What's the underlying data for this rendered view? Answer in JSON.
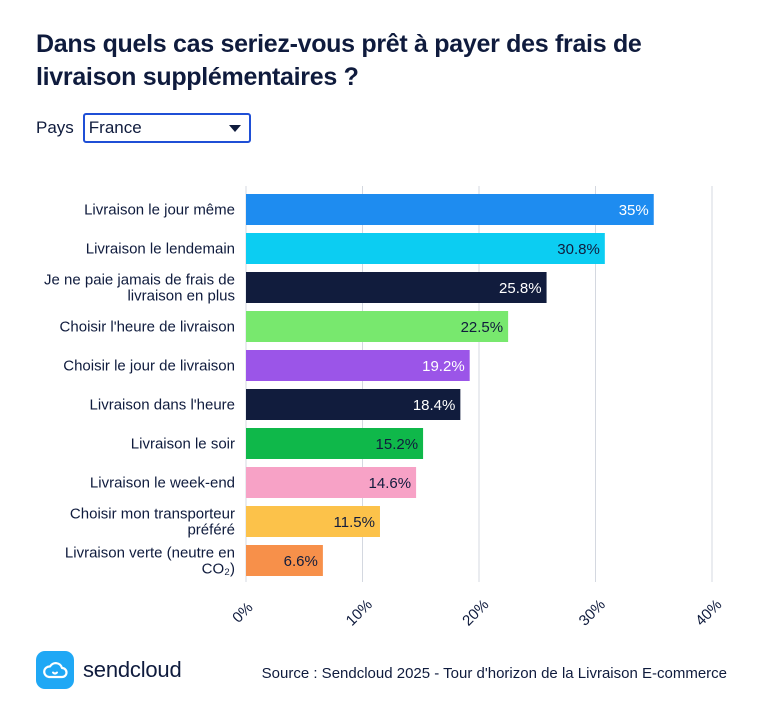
{
  "title": "Dans quels cas seriez-vous prêt à payer des frais de livraison supplémentaires ?",
  "filter": {
    "label": "Pays",
    "selected": "France"
  },
  "chart_data": {
    "type": "bar",
    "orientation": "horizontal",
    "categories": [
      [
        "Livraison le jour même"
      ],
      [
        "Livraison le lendemain"
      ],
      [
        "Je ne paie jamais de frais de",
        "livraison en plus"
      ],
      [
        "Choisir l'heure de livraison"
      ],
      [
        "Choisir le jour de livraison"
      ],
      [
        "Livraison dans l'heure"
      ],
      [
        "Livraison le soir"
      ],
      [
        "Livraison le week-end"
      ],
      [
        "Choisir mon transporteur",
        "préféré"
      ],
      [
        "Livraison verte (neutre en",
        "CO₂)"
      ]
    ],
    "values": [
      35,
      30.8,
      25.8,
      22.5,
      19.2,
      18.4,
      15.2,
      14.6,
      11.5,
      6.6
    ],
    "value_labels": [
      "35%",
      "30.8%",
      "25.8%",
      "22.5%",
      "19.2%",
      "18.4%",
      "15.2%",
      "14.6%",
      "11.5%",
      "6.6%"
    ],
    "colors": [
      "#1e8cf0",
      "#0ccdf2",
      "#111c3d",
      "#78e86e",
      "#9b55e8",
      "#111c3d",
      "#0fb84a",
      "#f7a2c6",
      "#fcc24a",
      "#f7904a"
    ],
    "label_colors": [
      "#ffffff",
      "#111c3d",
      "#ffffff",
      "#111c3d",
      "#ffffff",
      "#ffffff",
      "#111c3d",
      "#111c3d",
      "#111c3d",
      "#111c3d"
    ],
    "xlim": [
      0,
      40
    ],
    "xticks": [
      0,
      10,
      20,
      30,
      40
    ],
    "xtick_labels": [
      "0%",
      "10%",
      "20%",
      "30%",
      "40%"
    ],
    "grid": "vertical"
  },
  "footer": {
    "logo_text": "sendcloud",
    "source": "Source : Sendcloud 2025 - Tour d'horizon de la Livraison E-commerce"
  }
}
